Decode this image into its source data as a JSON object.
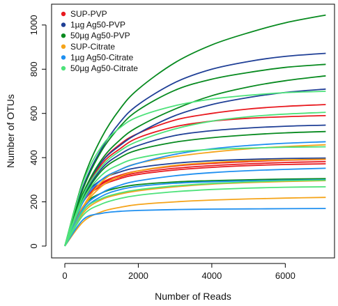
{
  "chart_data": {
    "type": "line",
    "title": "",
    "xlabel": "Number of Reads",
    "ylabel": "Number of OTUs",
    "xlim": [
      0,
      7150
    ],
    "ylim": [
      0,
      1050
    ],
    "xticks": [
      0,
      2000,
      4000,
      6000
    ],
    "yticks": [
      0,
      200,
      400,
      600,
      800,
      1000
    ],
    "grid": false,
    "legend_position": "top-left",
    "legend": [
      {
        "label": "SUP-PVP",
        "color": "#e8191f"
      },
      {
        "label": "1µg Ag50-PVP",
        "color": "#1f3f96"
      },
      {
        "label": "50µg Ag50-PVP",
        "color": "#078a1f"
      },
      {
        "label": "SUP-Citrate",
        "color": "#f5a41a"
      },
      {
        "label": "1µg Ag50-Citrate",
        "color": "#1e8ff0"
      },
      {
        "label": "50µg Ag50-Citrate",
        "color": "#4de27a"
      }
    ],
    "series_x": [
      0,
      500,
      1000,
      1500,
      2000,
      3000,
      4000,
      5000,
      6000,
      7100
    ],
    "series": [
      {
        "group": "SUP-PVP",
        "color": "#e8191f",
        "values": [
          0,
          230,
          380,
          460,
          510,
          570,
          600,
          620,
          632,
          640
        ]
      },
      {
        "group": "SUP-PVP",
        "color": "#e8191f",
        "values": [
          0,
          230,
          370,
          440,
          490,
          540,
          565,
          578,
          585,
          590
        ]
      },
      {
        "group": "SUP-PVP",
        "color": "#e8191f",
        "values": [
          0,
          210,
          285,
          320,
          340,
          362,
          374,
          382,
          388,
          392
        ]
      },
      {
        "group": "SUP-PVP",
        "color": "#e8191f",
        "values": [
          0,
          205,
          280,
          312,
          332,
          352,
          364,
          372,
          378,
          382
        ]
      },
      {
        "group": "SUP-PVP",
        "color": "#e8191f",
        "values": [
          0,
          200,
          272,
          305,
          324,
          344,
          356,
          364,
          369,
          372
        ]
      },
      {
        "group": "1µg Ag50-PVP",
        "color": "#1f3f96",
        "values": [
          0,
          270,
          440,
          560,
          640,
          740,
          800,
          835,
          858,
          872
        ]
      },
      {
        "group": "1µg Ag50-PVP",
        "color": "#1f3f96",
        "values": [
          0,
          240,
          380,
          455,
          510,
          590,
          640,
          672,
          695,
          710
        ]
      },
      {
        "group": "1µg Ag50-PVP",
        "color": "#1f3f96",
        "values": [
          0,
          220,
          350,
          415,
          455,
          500,
          522,
          534,
          542,
          547
        ]
      },
      {
        "group": "1µg Ag50-PVP",
        "color": "#1f3f96",
        "values": [
          0,
          215,
          300,
          335,
          355,
          375,
          386,
          392,
          396,
          398
        ]
      },
      {
        "group": "50µg Ag50-PVP",
        "color": "#078a1f",
        "values": [
          0,
          300,
          490,
          620,
          710,
          830,
          910,
          965,
          1010,
          1045
        ]
      },
      {
        "group": "50µg Ag50-PVP",
        "color": "#078a1f",
        "values": [
          0,
          260,
          430,
          540,
          615,
          705,
          755,
          785,
          808,
          822
        ]
      },
      {
        "group": "50µg Ag50-PVP",
        "color": "#078a1f",
        "values": [
          0,
          240,
          390,
          480,
          540,
          620,
          680,
          720,
          748,
          770
        ]
      },
      {
        "group": "50µg Ag50-PVP",
        "color": "#078a1f",
        "values": [
          0,
          215,
          340,
          400,
          435,
          470,
          490,
          503,
          512,
          518
        ]
      },
      {
        "group": "50µg Ag50-PVP",
        "color": "#078a1f",
        "values": [
          0,
          180,
          240,
          265,
          278,
          290,
          296,
          300,
          303,
          305
        ]
      },
      {
        "group": "SUP-Citrate",
        "color": "#f5a41a",
        "values": [
          0,
          180,
          290,
          345,
          375,
          405,
          425,
          440,
          450,
          458
        ]
      },
      {
        "group": "SUP-Citrate",
        "color": "#f5a41a",
        "values": [
          0,
          175,
          270,
          315,
          340,
          365,
          378,
          386,
          390,
          393
        ]
      },
      {
        "group": "SUP-Citrate",
        "color": "#f5a41a",
        "values": [
          0,
          150,
          210,
          235,
          250,
          268,
          280,
          287,
          292,
          296
        ]
      },
      {
        "group": "SUP-Citrate",
        "color": "#f5a41a",
        "values": [
          0,
          110,
          155,
          175,
          188,
          200,
          208,
          213,
          217,
          220
        ]
      },
      {
        "group": "1µg Ag50-Citrate",
        "color": "#1e8ff0",
        "values": [
          0,
          200,
          300,
          345,
          375,
          415,
          440,
          455,
          465,
          472
        ]
      },
      {
        "group": "1µg Ag50-Citrate",
        "color": "#1e8ff0",
        "values": [
          0,
          170,
          240,
          275,
          295,
          318,
          332,
          341,
          347,
          352
        ]
      },
      {
        "group": "1µg Ag50-Citrate",
        "color": "#1e8ff0",
        "values": [
          0,
          160,
          225,
          255,
          270,
          284,
          291,
          295,
          298,
          300
        ]
      },
      {
        "group": "1µg Ag50-Citrate",
        "color": "#1e8ff0",
        "values": [
          0,
          120,
          148,
          157,
          161,
          165,
          167,
          168,
          169,
          170
        ]
      },
      {
        "group": "50µg Ag50-Citrate",
        "color": "#4de27a",
        "values": [
          0,
          290,
          450,
          535,
          585,
          635,
          665,
          682,
          694,
          700
        ]
      },
      {
        "group": "50µg Ag50-Citrate",
        "color": "#4de27a",
        "values": [
          0,
          230,
          360,
          430,
          475,
          530,
          565,
          585,
          597,
          605
        ]
      },
      {
        "group": "50µg Ag50-Citrate",
        "color": "#4de27a",
        "values": [
          0,
          210,
          320,
          370,
          398,
          425,
          437,
          443,
          447,
          449
        ]
      },
      {
        "group": "50µg Ag50-Citrate",
        "color": "#4de27a",
        "values": [
          0,
          160,
          215,
          240,
          255,
          272,
          283,
          290,
          295,
          298
        ]
      },
      {
        "group": "50µg Ag50-Citrate",
        "color": "#4de27a",
        "values": [
          0,
          140,
          190,
          215,
          230,
          246,
          256,
          262,
          266,
          268
        ]
      }
    ]
  }
}
